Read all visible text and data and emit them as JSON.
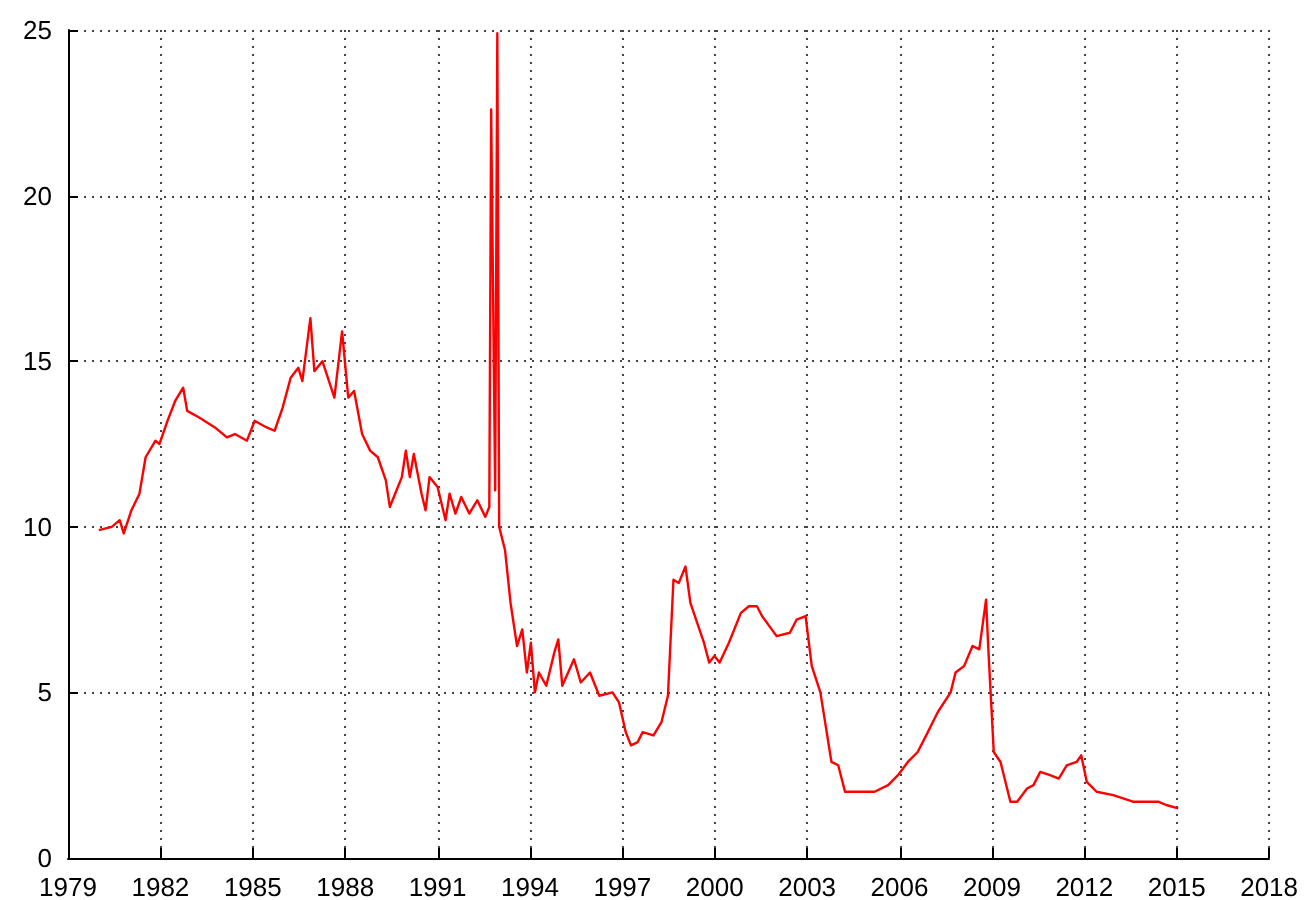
{
  "chart_data": {
    "type": "line",
    "grid": true,
    "line_style": "solid",
    "marker": "none",
    "xlim": [
      1979,
      2018
    ],
    "xticks": [
      1979,
      1982,
      1985,
      1988,
      1991,
      1994,
      1997,
      2000,
      2003,
      2006,
      2009,
      2012,
      2015,
      2018
    ],
    "ylim": [
      0,
      25
    ],
    "yticks": [
      0,
      5,
      10,
      15,
      20,
      25
    ],
    "series": [
      {
        "color": "#ff0000",
        "x": [
          1980.0,
          1980.42,
          1980.68,
          1980.81,
          1981.06,
          1981.32,
          1981.52,
          1981.84,
          1981.97,
          1982.23,
          1982.48,
          1982.74,
          1982.87,
          1983.26,
          1983.77,
          1984.16,
          1984.42,
          1984.81,
          1985.06,
          1985.45,
          1985.71,
          1985.97,
          1986.23,
          1986.48,
          1986.61,
          1986.87,
          1987.0,
          1987.26,
          1987.65,
          1987.9,
          1988.1,
          1988.29,
          1988.55,
          1988.81,
          1989.06,
          1989.32,
          1989.45,
          1989.58,
          1989.84,
          1989.97,
          1990.1,
          1990.23,
          1990.48,
          1990.61,
          1990.74,
          1991.0,
          1991.26,
          1991.39,
          1991.58,
          1991.77,
          1992.03,
          1992.29,
          1992.55,
          1992.68,
          1992.74,
          1992.87,
          1992.94,
          1993.0,
          1993.19,
          1993.37,
          1993.58,
          1993.75,
          1993.9,
          1994.03,
          1994.16,
          1994.29,
          1994.53,
          1994.79,
          1994.92,
          1995.05,
          1995.43,
          1995.65,
          1995.95,
          1996.25,
          1996.68,
          1996.89,
          1997.11,
          1997.28,
          1997.5,
          1997.66,
          1998.01,
          1998.27,
          1998.48,
          1998.66,
          1998.83,
          1999.05,
          1999.21,
          1999.43,
          1999.65,
          1999.82,
          1999.99,
          2000.16,
          2000.46,
          2000.85,
          2001.11,
          2001.37,
          2001.54,
          2002.01,
          2002.44,
          2002.66,
          2002.95,
          2003.15,
          2003.43,
          2003.79,
          2004.01,
          2004.23,
          2004.98,
          2005.19,
          2005.63,
          2005.95,
          2006.27,
          2006.59,
          2006.92,
          2007.24,
          2007.66,
          2007.82,
          2008.1,
          2008.37,
          2008.59,
          2008.81,
          2008.89,
          2009.06,
          2009.28,
          2009.6,
          2009.82,
          2010.14,
          2010.35,
          2010.57,
          2010.89,
          2011.17,
          2011.43,
          2011.75,
          2011.9,
          2012.08,
          2012.4,
          2012.94,
          2013.58,
          2014.4,
          2014.66,
          2015.05
        ],
        "values": [
          9.9,
          10.0,
          10.2,
          9.8,
          10.5,
          11.0,
          12.1,
          12.6,
          12.5,
          13.2,
          13.8,
          14.2,
          13.5,
          13.3,
          13.0,
          12.7,
          12.8,
          12.6,
          13.2,
          13.0,
          12.9,
          13.6,
          14.5,
          14.8,
          14.4,
          16.3,
          14.7,
          15.0,
          13.9,
          15.9,
          13.9,
          14.1,
          12.8,
          12.3,
          12.1,
          11.4,
          10.6,
          10.9,
          11.5,
          12.3,
          11.5,
          12.2,
          11.0,
          10.5,
          11.5,
          11.2,
          10.2,
          11.0,
          10.4,
          10.9,
          10.4,
          10.8,
          10.3,
          10.6,
          22.6,
          11.1,
          24.9,
          10.0,
          9.3,
          7.7,
          6.4,
          6.9,
          5.6,
          6.5,
          5.0,
          5.6,
          5.2,
          6.2,
          6.6,
          5.2,
          6.0,
          5.3,
          5.6,
          4.9,
          5.0,
          4.7,
          3.8,
          3.4,
          3.5,
          3.8,
          3.7,
          4.1,
          4.9,
          8.4,
          8.3,
          8.8,
          7.7,
          7.1,
          6.5,
          5.9,
          6.1,
          5.9,
          6.5,
          7.4,
          7.6,
          7.6,
          7.3,
          6.7,
          6.8,
          7.2,
          7.3,
          5.8,
          5.0,
          2.9,
          2.8,
          2.0,
          2.0,
          2.0,
          2.2,
          2.5,
          2.9,
          3.2,
          3.8,
          4.4,
          5.0,
          5.6,
          5.8,
          6.4,
          6.3,
          7.8,
          6.2,
          3.2,
          2.9,
          1.7,
          1.7,
          2.1,
          2.2,
          2.6,
          2.5,
          2.4,
          2.8,
          2.9,
          3.1,
          2.3,
          2.0,
          1.9,
          1.7,
          1.7,
          1.6,
          1.5
        ]
      }
    ]
  }
}
